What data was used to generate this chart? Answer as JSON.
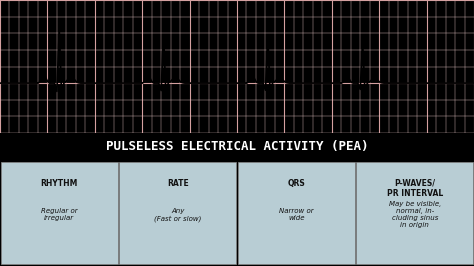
{
  "title": "PULSELESS ELECTRICAL ACTIVITY (PEA)",
  "title_bg": "#1a1a1a",
  "title_color": "#ffffff",
  "ecg_bg_color": "#f5e6e6",
  "grid_minor_color": "#e8c8c8",
  "grid_major_color": "#d4a0a0",
  "ecg_line_color": "#000000",
  "table_bg_color": "#b8cdd4",
  "table_border_color": "#888888",
  "columns": [
    {
      "header": "RHYTHM",
      "body": "Regular or\nirregular"
    },
    {
      "header": "RATE",
      "body": "Any\n(Fast or slow)"
    },
    {
      "header": "QRS",
      "body": "Narrow or\nwide"
    },
    {
      "header": "P-WAVES/\nPR INTERVAL",
      "body": "May be visible,\nnormal, in-\ncluding sinus\nin origin"
    }
  ],
  "fig_width": 4.74,
  "fig_height": 2.66,
  "dpi": 100
}
